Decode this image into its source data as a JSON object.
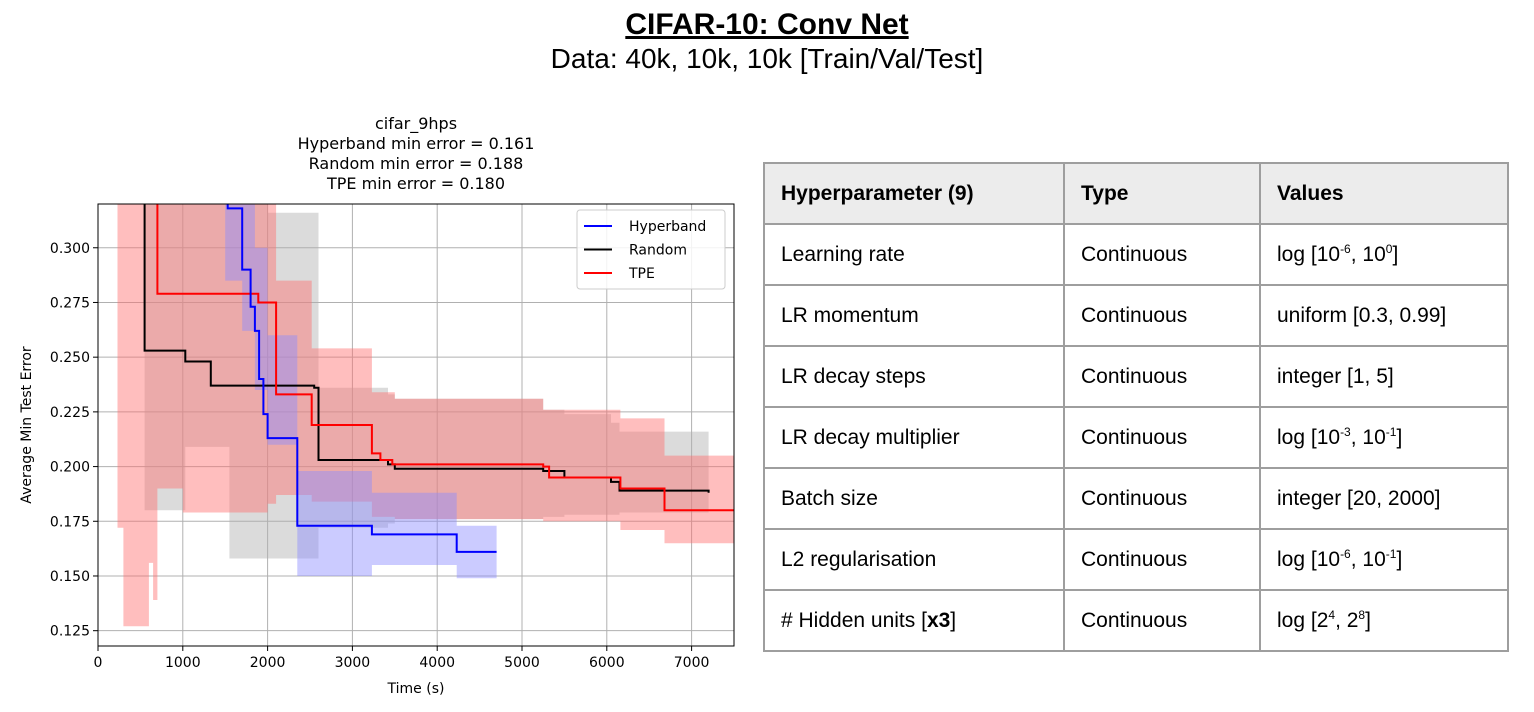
{
  "header": {
    "title": "CIFAR-10: Conv Net",
    "subtitle": "Data: 40k, 10k, 10k [Train/Val/Test]"
  },
  "chart_data": {
    "type": "line",
    "title_lines": [
      "cifar_9hps",
      "Hyperband min error = 0.161",
      "Random min error = 0.188",
      "TPE min error = 0.180"
    ],
    "xlabel": "Time (s)",
    "ylabel": "Average Min Test Error",
    "xlim": [
      0,
      7500
    ],
    "ylim": [
      0.118,
      0.32
    ],
    "xticks": [
      0,
      1000,
      2000,
      3000,
      4000,
      5000,
      6000,
      7000
    ],
    "yticks": [
      0.125,
      0.15,
      0.175,
      0.2,
      0.225,
      0.25,
      0.275,
      0.3
    ],
    "xtick_labels": [
      "0",
      "1000",
      "2000",
      "3000",
      "4000",
      "5000",
      "6000",
      "7000"
    ],
    "ytick_labels": [
      "0.125",
      "0.150",
      "0.175",
      "0.200",
      "0.225",
      "0.250",
      "0.275",
      "0.300"
    ],
    "grid": true,
    "legend_position": "top-right",
    "series": [
      {
        "name": "Random",
        "color": "#000000",
        "band_color": "#b0b0b0",
        "x": [
          550,
          550,
          1030,
          1330,
          2550,
          2600,
          3420,
          3500,
          5250,
          5500,
          6050,
          6150,
          7200
        ],
        "y": [
          0.33,
          0.253,
          0.248,
          0.237,
          0.236,
          0.203,
          0.201,
          0.199,
          0.198,
          0.195,
          0.193,
          0.189,
          0.188
        ],
        "band_x": [
          550,
          700,
          1030,
          1330,
          1550,
          2000,
          2550,
          2600,
          3420,
          3500,
          5250,
          5500,
          6050,
          6150,
          7200
        ],
        "band_upper": [
          0.32,
          0.32,
          0.32,
          0.32,
          0.32,
          0.316,
          0.316,
          0.236,
          0.233,
          0.231,
          0.226,
          0.224,
          0.22,
          0.216,
          0.21
        ],
        "band_lower": [
          0.18,
          0.18,
          0.209,
          0.209,
          0.158,
          0.158,
          0.158,
          0.172,
          0.174,
          0.176,
          0.177,
          0.178,
          0.178,
          0.179,
          0.18
        ]
      },
      {
        "name": "TPE",
        "color": "#ff0000",
        "band_color": "#ff6e6e",
        "x": [
          700,
          700,
          1890,
          2100,
          2520,
          3230,
          3330,
          3470,
          5250,
          5320,
          6160,
          6680,
          7500
        ],
        "y": [
          0.33,
          0.279,
          0.275,
          0.233,
          0.219,
          0.206,
          0.203,
          0.201,
          0.2,
          0.195,
          0.19,
          0.18,
          0.18
        ],
        "band_x": [
          230,
          300,
          600,
          650,
          700,
          1000,
          2000,
          2100,
          2520,
          3230,
          3500,
          5250,
          6160,
          6680,
          7500
        ],
        "band_upper": [
          0.32,
          0.32,
          0.32,
          0.32,
          0.32,
          0.32,
          0.32,
          0.285,
          0.254,
          0.234,
          0.231,
          0.226,
          0.222,
          0.205,
          0.2
        ],
        "band_lower": [
          0.172,
          0.127,
          0.156,
          0.139,
          0.19,
          0.179,
          0.183,
          0.187,
          0.184,
          0.177,
          0.176,
          0.175,
          0.171,
          0.165,
          0.16
        ]
      },
      {
        "name": "Hyperband",
        "color": "#0000ff",
        "band_color": "#8c8cff",
        "x": [
          1530,
          1530,
          1700,
          1800,
          1850,
          1900,
          1950,
          2000,
          2350,
          2350,
          3230,
          4230,
          4700
        ],
        "y": [
          0.33,
          0.318,
          0.29,
          0.273,
          0.262,
          0.24,
          0.224,
          0.213,
          0.193,
          0.173,
          0.169,
          0.161,
          0.161
        ],
        "band_x": [
          1500,
          1700,
          1850,
          2000,
          2350,
          3230,
          4230,
          4700
        ],
        "band_upper": [
          0.32,
          0.32,
          0.3,
          0.26,
          0.198,
          0.188,
          0.173,
          0.173
        ],
        "band_lower": [
          0.285,
          0.262,
          0.235,
          0.21,
          0.15,
          0.155,
          0.149,
          0.149
        ]
      }
    ]
  },
  "table": {
    "headers": [
      "Hyperparameter (9)",
      "Type",
      "Values"
    ],
    "rows": [
      {
        "name": "Learning rate",
        "type": "Continuous",
        "v_pre": "log [10",
        "v_sup1": "-6",
        "v_mid": ", 10",
        "v_sup2": "0",
        "v_post": "]"
      },
      {
        "name": "LR momentum",
        "type": "Continuous",
        "v_pre": "uniform [0.3, 0.99]",
        "v_sup1": "",
        "v_mid": "",
        "v_sup2": "",
        "v_post": ""
      },
      {
        "name": "LR decay steps",
        "type": "Continuous",
        "v_pre": "integer [1, 5]",
        "v_sup1": "",
        "v_mid": "",
        "v_sup2": "",
        "v_post": ""
      },
      {
        "name": "LR decay multiplier",
        "type": "Continuous",
        "v_pre": "log [10",
        "v_sup1": "-3",
        "v_mid": ", 10",
        "v_sup2": "-1",
        "v_post": "]"
      },
      {
        "name": "Batch size",
        "type": "Continuous",
        "v_pre": "integer [20, 2000]",
        "v_sup1": "",
        "v_mid": "",
        "v_sup2": "",
        "v_post": ""
      },
      {
        "name": "L2 regularisation",
        "type": "Continuous",
        "v_pre": "log [10",
        "v_sup1": "-6",
        "v_mid": ", 10",
        "v_sup2": "-1",
        "v_post": "]"
      },
      {
        "name": "# Hidden units [",
        "name_bold": "x3",
        "name_post": "]",
        "type": "Continuous",
        "v_pre": "log [2",
        "v_sup1": "4",
        "v_mid": ", 2",
        "v_sup2": "8",
        "v_post": "]"
      }
    ]
  }
}
